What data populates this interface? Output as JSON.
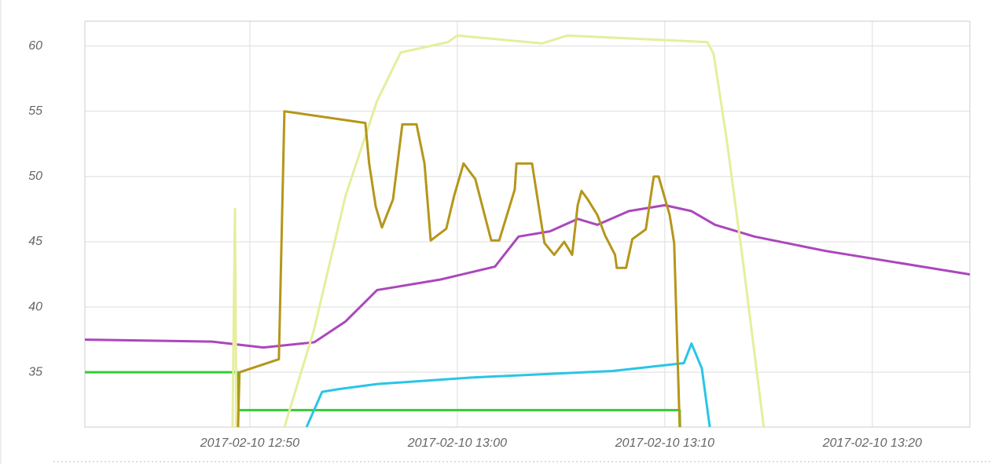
{
  "chart_data": {
    "type": "line",
    "xlim": [
      "2017-02-10 12:42:03",
      "2017-02-10 13:24:42"
    ],
    "xticks": [
      "2017-02-10 12:50",
      "2017-02-10 13:00",
      "2017-02-10 13:10",
      "2017-02-10 13:20"
    ],
    "ylim": [
      30.8,
      61.9
    ],
    "yticks": [
      35,
      40,
      45,
      50,
      55,
      60
    ],
    "grid": true,
    "series": [
      {
        "color": "#ab47bc",
        "x": [
          "2017-02-10 12:42:03",
          "2017-02-10 12:48:11",
          "2017-02-10 12:50:39",
          "2017-02-10 12:53:06",
          "2017-02-10 12:54:37",
          "2017-02-10 12:56:08",
          "2017-02-10 12:59:10",
          "2017-02-10 13:01:49",
          "2017-02-10 13:02:57",
          "2017-02-10 13:04:28",
          "2017-02-10 13:05:48",
          "2017-02-10 13:06:45",
          "2017-02-10 13:08:16",
          "2017-02-10 13:10:00",
          "2017-02-10 13:11:17",
          "2017-02-10 13:12:25",
          "2017-02-10 13:14:19",
          "2017-02-10 13:17:44",
          "2017-02-10 13:24:42"
        ],
        "values": [
          37.5,
          37.35,
          36.9,
          37.3,
          38.9,
          41.3,
          42.1,
          43.1,
          45.4,
          45.8,
          46.75,
          46.3,
          47.35,
          47.8,
          47.35,
          46.3,
          45.4,
          44.3,
          42.5
        ]
      },
      {
        "color": "#33cc33",
        "x": [
          "2017-02-10 12:42:03",
          "2017-02-10 12:49:26",
          "2017-02-10 12:49:27",
          "2017-02-10 13:10:43",
          "2017-02-10 13:10:44"
        ],
        "values": [
          35,
          35,
          32.1,
          32.1,
          30.8
        ]
      },
      {
        "color": "#e6ee9c",
        "x": [
          "2017-02-10 12:49:10",
          "2017-02-10 12:49:17",
          "2017-02-10 12:49:21",
          "2017-02-10 12:50:30",
          "2017-02-10 12:51:40",
          "2017-02-10 12:53:06",
          "2017-02-10 12:54:37",
          "2017-02-10 12:56:08",
          "2017-02-10 12:57:16",
          "2017-02-10 12:59:33",
          "2017-02-10 13:00:00",
          "2017-02-10 13:04:05",
          "2017-02-10 13:05:18",
          "2017-02-10 13:12:03",
          "2017-02-10 13:12:21",
          "2017-02-10 13:12:59",
          "2017-02-10 13:13:45",
          "2017-02-10 13:14:46"
        ],
        "values": [
          30.8,
          47.5,
          30.8,
          null,
          30.8,
          38.3,
          48.55,
          55.8,
          59.5,
          60.3,
          60.8,
          60.2,
          60.8,
          60.3,
          59.4,
          52.8,
          43.7,
          30.8
        ]
      },
      {
        "color": "#29c5e6",
        "x": [
          "2017-02-10 12:52:44",
          "2017-02-10 12:53:29",
          "2017-02-10 12:54:15",
          "2017-02-10 12:56:08",
          "2017-02-10 13:00:41",
          "2017-02-10 13:07:30",
          "2017-02-10 13:10:55",
          "2017-02-10 13:11:17",
          "2017-02-10 13:11:47",
          "2017-02-10 13:12:10"
        ],
        "values": [
          30.8,
          33.5,
          33.7,
          34.1,
          34.6,
          35.1,
          35.7,
          37.2,
          35.3,
          30.8
        ]
      },
      {
        "color": "#b5961a",
        "x": [
          "2017-02-10 12:49:26",
          "2017-02-10 12:49:30",
          "2017-02-10 12:51:24",
          "2017-02-10 12:51:40",
          "2017-02-10 12:55:34",
          "2017-02-10 12:55:45",
          "2017-02-10 12:56:04",
          "2017-02-10 12:56:22",
          "2017-02-10 12:56:54",
          "2017-02-10 12:57:21",
          "2017-02-10 12:58:02",
          "2017-02-10 12:58:25",
          "2017-02-10 12:58:43",
          "2017-02-10 12:59:28",
          "2017-02-10 12:59:51",
          "2017-02-10 13:00:18",
          "2017-02-10 13:00:52",
          "2017-02-10 13:01:38",
          "2017-02-10 13:02:01",
          "2017-02-10 13:02:46",
          "2017-02-10 13:02:51",
          "2017-02-10 13:03:36",
          "2017-02-10 13:04:12",
          "2017-02-10 13:04:40",
          "2017-02-10 13:05:09",
          "2017-02-10 13:05:32",
          "2017-02-10 13:05:48",
          "2017-02-10 13:05:59",
          "2017-02-10 13:06:17",
          "2017-02-10 13:06:45",
          "2017-02-10 13:07:07",
          "2017-02-10 13:07:36",
          "2017-02-10 13:07:41",
          "2017-02-10 13:08:08",
          "2017-02-10 13:08:26",
          "2017-02-10 13:09:05",
          "2017-02-10 13:09:28",
          "2017-02-10 13:09:42",
          "2017-02-10 13:10:14",
          "2017-02-10 13:10:27",
          "2017-02-10 13:10:43"
        ],
        "values": [
          30.8,
          35,
          36,
          55,
          54.1,
          51,
          47.7,
          46.1,
          48.25,
          54,
          54,
          51,
          45.1,
          46,
          48.55,
          51,
          49.8,
          45.1,
          45.1,
          49,
          51,
          51,
          44.9,
          44,
          45,
          44,
          47.8,
          48.9,
          48.25,
          47.05,
          45.5,
          44,
          43,
          43,
          45.2,
          45.95,
          50,
          50,
          47.05,
          44.9,
          30.8
        ]
      }
    ]
  }
}
